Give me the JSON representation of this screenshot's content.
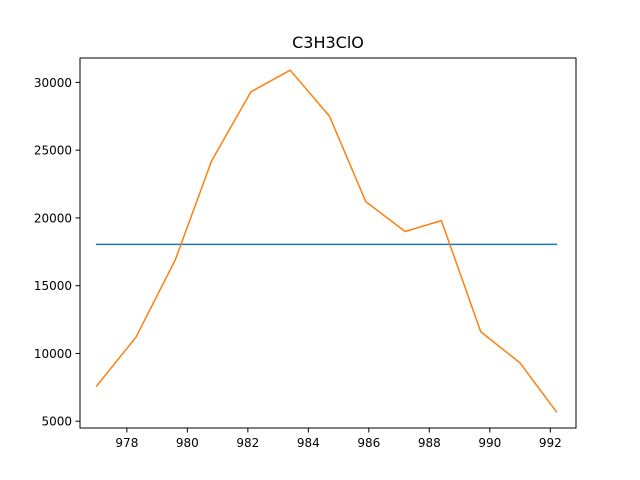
{
  "chart_data": {
    "type": "line",
    "title": "C3H3ClO",
    "xlabel": "",
    "ylabel": "",
    "xlim": [
      976.45,
      992.85
    ],
    "ylim": [
      4500,
      31800
    ],
    "xticks": [
      978,
      980,
      982,
      984,
      986,
      988,
      990,
      992
    ],
    "yticks": [
      5000,
      10000,
      15000,
      20000,
      25000,
      30000
    ],
    "grid": false,
    "legend": "none",
    "series": [
      {
        "color": "#1f77b4",
        "x": [
          977.0,
          992.2
        ],
        "y": [
          18050,
          18050
        ]
      },
      {
        "color": "#ff7f0e",
        "x": [
          977.0,
          978.3,
          979.6,
          980.8,
          982.1,
          983.4,
          984.7,
          985.9,
          987.2,
          988.4,
          989.7,
          991.0,
          992.2
        ],
        "y": [
          7600,
          11200,
          16900,
          24200,
          29300,
          30900,
          27500,
          21200,
          19000,
          19800,
          11600,
          9300,
          5700
        ]
      }
    ]
  }
}
